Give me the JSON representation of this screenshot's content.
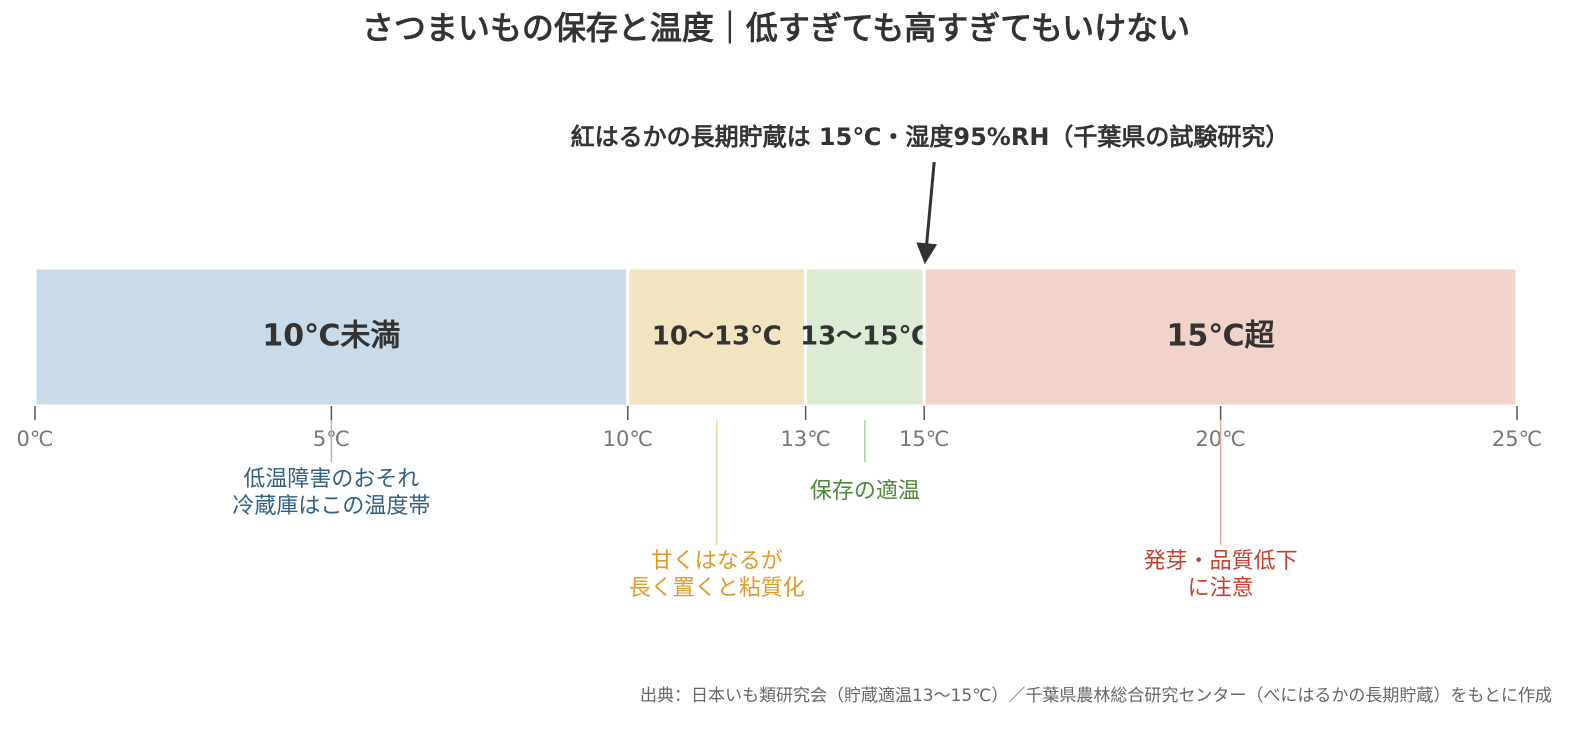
{
  "chart_data": {
    "type": "range-bar",
    "title": "さつまいもの保存と温度｜低すぎても高すぎてもいけない",
    "xlim": [
      0,
      25
    ],
    "xticks": [
      {
        "value": 0,
        "label": "0℃"
      },
      {
        "value": 5,
        "label": "5℃"
      },
      {
        "value": 10,
        "label": "10℃"
      },
      {
        "value": 13,
        "label": "13℃"
      },
      {
        "value": 15,
        "label": "15℃"
      },
      {
        "value": 20,
        "label": "20℃"
      },
      {
        "value": 25,
        "label": "25℃"
      }
    ],
    "segments": [
      {
        "label": "10℃未満",
        "start": 0,
        "end": 10,
        "color": "#c9dbe9"
      },
      {
        "label": "10〜13℃",
        "start": 10,
        "end": 13,
        "color": "#f2e3c1"
      },
      {
        "label": "13〜15℃",
        "start": 13,
        "end": 15,
        "color": "#dcebd4"
      },
      {
        "label": "15℃超",
        "start": 15,
        "end": 25,
        "color": "#f2d3c9"
      }
    ],
    "notes": [
      {
        "x": 5,
        "lines": [
          "低温障害のおそれ",
          "冷蔵庫はこの温度帯"
        ],
        "color": "#2f5f85",
        "line_color": "#9fb9cf",
        "row": 0
      },
      {
        "x": 11.5,
        "lines": [
          "甘くはなるが",
          "長く置くと粘質化"
        ],
        "color": "#e09a2a",
        "line_color": "#efd596",
        "row": 1
      },
      {
        "x": 14,
        "lines": [
          "保存の適温"
        ],
        "color": "#4a8a3a",
        "line_color": "#a7cf99",
        "row": 0
      },
      {
        "x": 20,
        "lines": [
          "発芽・品質低下",
          "に注意"
        ],
        "color": "#c8402a",
        "line_color": "#eaa597",
        "row": 1
      }
    ],
    "annotation": {
      "text": "紅はるかの長期貯蔵は 15℃・湿度95%RH（千葉県の試験研究）",
      "x": 15
    },
    "source": "出典：日本いも類研究会（貯蔵適温13〜15℃）／千葉県農林総合研究センター（べにはるかの長期貯蔵）をもとに作成"
  }
}
